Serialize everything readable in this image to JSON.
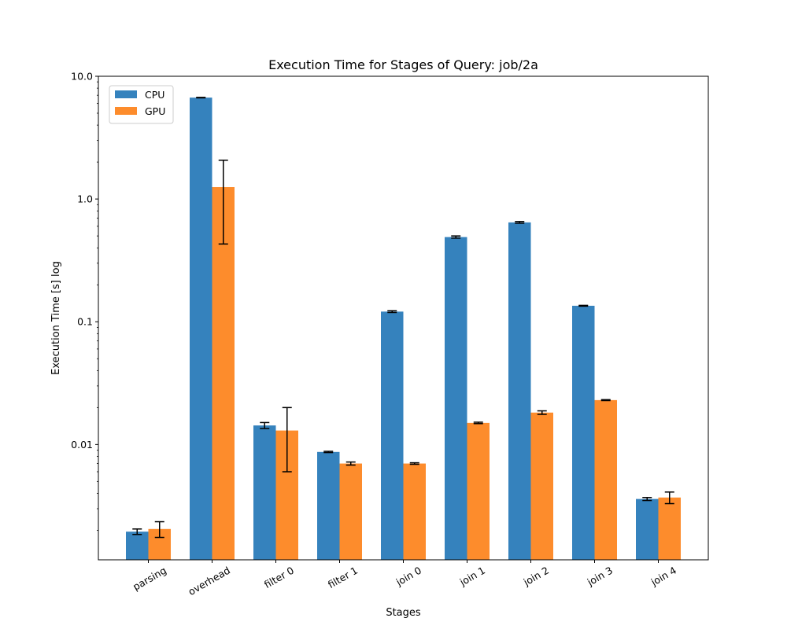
{
  "chart_data": {
    "type": "bar",
    "title": "Execution Time for Stages of Query: job/2a",
    "xlabel": "Stages",
    "ylabel": "Execution Time [s] log",
    "yscale": "log",
    "ylim": [
      0.00115,
      10.0
    ],
    "yticks": [
      {
        "value": 0.01,
        "label": "0.01"
      },
      {
        "value": 0.1,
        "label": "0.1"
      },
      {
        "value": 1.0,
        "label": "1.0"
      },
      {
        "value": 10.0,
        "label": "10.0"
      }
    ],
    "categories": [
      "parsing",
      "overhead",
      "filter 0",
      "filter 1",
      "join 0",
      "join 1",
      "join 2",
      "join 3",
      "join 4"
    ],
    "series": [
      {
        "name": "CPU",
        "color": "#3582bd",
        "values": [
          0.00195,
          6.7,
          0.0143,
          0.0087,
          0.121,
          0.49,
          0.645,
          0.135,
          0.0036
        ],
        "errors": [
          0.0001,
          0.03,
          0.0008,
          0.0001,
          0.002,
          0.01,
          0.01,
          0.001,
          0.0001
        ]
      },
      {
        "name": "GPU",
        "color": "#fd8c2c",
        "values": [
          0.00205,
          1.25,
          0.013,
          0.007,
          0.007,
          0.015,
          0.0182,
          0.023,
          0.0037
        ],
        "errors": [
          0.0003,
          0.82,
          0.007,
          0.0002,
          0.0001,
          0.0002,
          0.0006,
          0.0002,
          0.0004
        ]
      }
    ],
    "legend": {
      "position": "top-left"
    },
    "grid": false
  }
}
